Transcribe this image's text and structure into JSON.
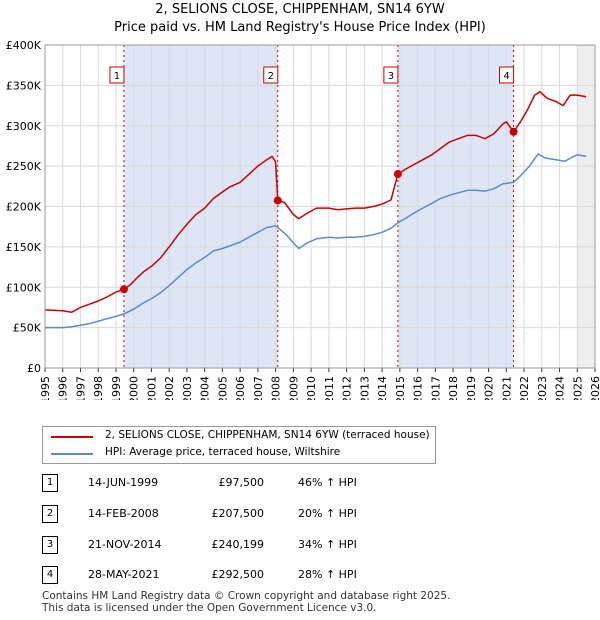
{
  "header": {
    "title": "2, SELIONS CLOSE, CHIPPENHAM, SN14 6YW",
    "subtitle": "Price paid vs. HM Land Registry's House Price Index (HPI)"
  },
  "chart_data": {
    "type": "line",
    "xlim": [
      1995,
      2026
    ],
    "ylim": [
      0,
      400000
    ],
    "x_ticks": [
      1995,
      1996,
      1997,
      1998,
      1999,
      2000,
      2001,
      2002,
      2003,
      2004,
      2005,
      2006,
      2007,
      2008,
      2009,
      2010,
      2011,
      2012,
      2013,
      2014,
      2015,
      2016,
      2017,
      2018,
      2019,
      2020,
      2021,
      2022,
      2023,
      2024,
      2025,
      2026
    ],
    "y_ticks": [
      {
        "value": 0,
        "label": "£0"
      },
      {
        "value": 50000,
        "label": "£50K"
      },
      {
        "value": 100000,
        "label": "£100K"
      },
      {
        "value": 150000,
        "label": "£150K"
      },
      {
        "value": 200000,
        "label": "£200K"
      },
      {
        "value": 250000,
        "label": "£250K"
      },
      {
        "value": 300000,
        "label": "£300K"
      },
      {
        "value": 350000,
        "label": "£350K"
      },
      {
        "value": 400000,
        "label": "£400K"
      }
    ],
    "shaded_ranges": [
      [
        1999.45,
        2008.12
      ],
      [
        2014.89,
        2021.41
      ]
    ],
    "forecast_start": 2025.0,
    "series": [
      {
        "name": "2, SELIONS CLOSE, CHIPPENHAM, SN14 6YW (terraced house)",
        "color": "#cc0000",
        "points": [
          [
            1995.0,
            72000
          ],
          [
            1996.0,
            71000
          ],
          [
            1996.5,
            69000
          ],
          [
            1997.0,
            75000
          ],
          [
            1997.5,
            79000
          ],
          [
            1998.0,
            83000
          ],
          [
            1998.5,
            88000
          ],
          [
            1999.0,
            94000
          ],
          [
            1999.45,
            97500
          ],
          [
            1999.8,
            103000
          ],
          [
            2000.2,
            112000
          ],
          [
            2000.6,
            120000
          ],
          [
            2001.0,
            126000
          ],
          [
            2001.5,
            136000
          ],
          [
            2002.0,
            150000
          ],
          [
            2002.5,
            165000
          ],
          [
            2003.0,
            178000
          ],
          [
            2003.5,
            190000
          ],
          [
            2004.0,
            198000
          ],
          [
            2004.5,
            210000
          ],
          [
            2005.0,
            218000
          ],
          [
            2005.4,
            224000
          ],
          [
            2006.0,
            230000
          ],
          [
            2006.5,
            240000
          ],
          [
            2007.0,
            250000
          ],
          [
            2007.5,
            258000
          ],
          [
            2007.8,
            262000
          ],
          [
            2008.0,
            255000
          ],
          [
            2008.12,
            207500
          ],
          [
            2008.5,
            205000
          ],
          [
            2009.0,
            190000
          ],
          [
            2009.3,
            185000
          ],
          [
            2009.8,
            192000
          ],
          [
            2010.3,
            198000
          ],
          [
            2011.0,
            198000
          ],
          [
            2011.5,
            196000
          ],
          [
            2012.0,
            197000
          ],
          [
            2012.5,
            198000
          ],
          [
            2013.0,
            198000
          ],
          [
            2013.5,
            200000
          ],
          [
            2014.0,
            203000
          ],
          [
            2014.5,
            208000
          ],
          [
            2014.89,
            240199
          ],
          [
            2015.3,
            246000
          ],
          [
            2015.8,
            252000
          ],
          [
            2016.3,
            258000
          ],
          [
            2016.8,
            264000
          ],
          [
            2017.3,
            272000
          ],
          [
            2017.8,
            280000
          ],
          [
            2018.3,
            284000
          ],
          [
            2018.8,
            288000
          ],
          [
            2019.3,
            288000
          ],
          [
            2019.8,
            284000
          ],
          [
            2020.3,
            290000
          ],
          [
            2020.8,
            302000
          ],
          [
            2021.0,
            305000
          ],
          [
            2021.41,
            292500
          ],
          [
            2021.8,
            305000
          ],
          [
            2022.2,
            320000
          ],
          [
            2022.6,
            338000
          ],
          [
            2022.9,
            342000
          ],
          [
            2023.3,
            334000
          ],
          [
            2023.8,
            330000
          ],
          [
            2024.2,
            325000
          ],
          [
            2024.6,
            338000
          ],
          [
            2025.0,
            338000
          ],
          [
            2025.5,
            336000
          ]
        ]
      },
      {
        "name": "HPI: Average price, terraced house, Wiltshire",
        "color": "#5b8bc9",
        "points": [
          [
            1995.0,
            50000
          ],
          [
            1996.0,
            50000
          ],
          [
            1996.5,
            51000
          ],
          [
            1997.0,
            53000
          ],
          [
            1997.5,
            55000
          ],
          [
            1998.0,
            58000
          ],
          [
            1998.5,
            61000
          ],
          [
            1999.0,
            64000
          ],
          [
            1999.45,
            67000
          ],
          [
            2000.0,
            73000
          ],
          [
            2000.5,
            80000
          ],
          [
            2001.0,
            86000
          ],
          [
            2001.5,
            93000
          ],
          [
            2002.0,
            102000
          ],
          [
            2002.5,
            112000
          ],
          [
            2003.0,
            122000
          ],
          [
            2003.5,
            130000
          ],
          [
            2004.0,
            137000
          ],
          [
            2004.5,
            145000
          ],
          [
            2005.0,
            148000
          ],
          [
            2005.5,
            152000
          ],
          [
            2006.0,
            156000
          ],
          [
            2006.5,
            162000
          ],
          [
            2007.0,
            168000
          ],
          [
            2007.5,
            174000
          ],
          [
            2008.0,
            176000
          ],
          [
            2008.12,
            174000
          ],
          [
            2008.6,
            165000
          ],
          [
            2009.0,
            155000
          ],
          [
            2009.3,
            148000
          ],
          [
            2009.8,
            155000
          ],
          [
            2010.3,
            160000
          ],
          [
            2011.0,
            162000
          ],
          [
            2011.5,
            161000
          ],
          [
            2012.0,
            162000
          ],
          [
            2012.5,
            162000
          ],
          [
            2013.0,
            163000
          ],
          [
            2013.5,
            165000
          ],
          [
            2014.0,
            168000
          ],
          [
            2014.5,
            173000
          ],
          [
            2014.89,
            180000
          ],
          [
            2015.3,
            185000
          ],
          [
            2015.8,
            192000
          ],
          [
            2016.3,
            198000
          ],
          [
            2016.8,
            204000
          ],
          [
            2017.3,
            210000
          ],
          [
            2017.8,
            214000
          ],
          [
            2018.3,
            217000
          ],
          [
            2018.8,
            220000
          ],
          [
            2019.3,
            220000
          ],
          [
            2019.8,
            219000
          ],
          [
            2020.3,
            222000
          ],
          [
            2020.8,
            228000
          ],
          [
            2021.41,
            230000
          ],
          [
            2021.8,
            238000
          ],
          [
            2022.3,
            250000
          ],
          [
            2022.8,
            265000
          ],
          [
            2023.2,
            260000
          ],
          [
            2023.8,
            258000
          ],
          [
            2024.3,
            256000
          ],
          [
            2024.8,
            262000
          ],
          [
            2025.0,
            264000
          ],
          [
            2025.5,
            262000
          ]
        ]
      }
    ],
    "markers": [
      {
        "label": "1",
        "x": 1999.45,
        "y": 97500
      },
      {
        "label": "2",
        "x": 2008.12,
        "y": 207500
      },
      {
        "label": "3",
        "x": 2014.89,
        "y": 240199
      },
      {
        "label": "4",
        "x": 2021.41,
        "y": 292500
      }
    ],
    "legend": [
      {
        "label": "2, SELIONS CLOSE, CHIPPENHAM, SN14 6YW (terraced house)",
        "color": "#cc0000"
      },
      {
        "label": "HPI: Average price, terraced house, Wiltshire",
        "color": "#5b8bc9"
      }
    ]
  },
  "transactions": [
    {
      "num": "1",
      "date": "14-JUN-1999",
      "price": "£97,500",
      "hpi": "46% ↑ HPI"
    },
    {
      "num": "2",
      "date": "14-FEB-2008",
      "price": "£207,500",
      "hpi": "20% ↑ HPI"
    },
    {
      "num": "3",
      "date": "21-NOV-2014",
      "price": "£240,199",
      "hpi": "34% ↑ HPI"
    },
    {
      "num": "4",
      "date": "28-MAY-2021",
      "price": "£292,500",
      "hpi": "28% ↑ HPI"
    }
  ],
  "footer": {
    "line1": "Contains HM Land Registry data © Crown copyright and database right 2025.",
    "line2": "This data is licensed under the Open Government Licence v3.0."
  }
}
